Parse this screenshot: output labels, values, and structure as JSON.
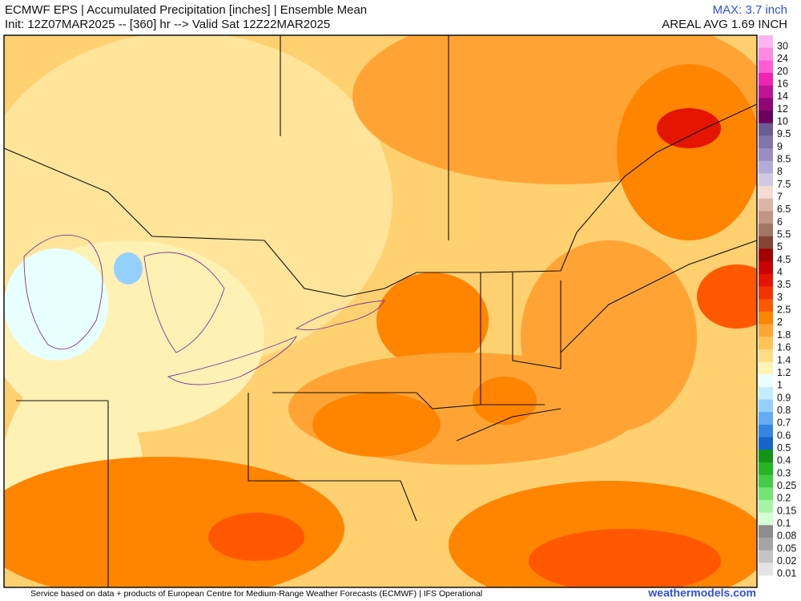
{
  "header": {
    "title": "ECMWF EPS | Accumulated Precipitation [inches] | Ensemble Mean",
    "subtitle": "Init: 12Z07MAR2025 -- [360] hr --> Valid Sat 12Z22MAR2025",
    "max": "MAX: 3.7 inch",
    "areal_avg": "AREAL AVG 1.69 INCH"
  },
  "legend": {
    "items": [
      {
        "value": 30,
        "color": "#ffb4f0"
      },
      {
        "value": 24,
        "color": "#ff88e4"
      },
      {
        "value": 20,
        "color": "#ff5cd4"
      },
      {
        "value": 16,
        "color": "#f024b4"
      },
      {
        "value": 14,
        "color": "#c01494"
      },
      {
        "value": 12,
        "color": "#900674"
      },
      {
        "value": 10,
        "color": "#6c0060"
      },
      {
        "value": 9.5,
        "color": "#6c5c94"
      },
      {
        "value": 9,
        "color": "#8474ac"
      },
      {
        "value": 8.5,
        "color": "#9c8cc4"
      },
      {
        "value": 8,
        "color": "#b4acd4"
      },
      {
        "value": 7.5,
        "color": "#d0c8e4"
      },
      {
        "value": 7,
        "color": "#f4dcd4"
      },
      {
        "value": 6.5,
        "color": "#dcb4a4"
      },
      {
        "value": 6,
        "color": "#c49484"
      },
      {
        "value": 5.5,
        "color": "#a47464"
      },
      {
        "value": 5,
        "color": "#844434"
      },
      {
        "value": 4.5,
        "color": "#a40000"
      },
      {
        "value": 4,
        "color": "#c80000"
      },
      {
        "value": 3.5,
        "color": "#e41400"
      },
      {
        "value": 3,
        "color": "#f43400"
      },
      {
        "value": 2.5,
        "color": "#ff5800"
      },
      {
        "value": 2,
        "color": "#ff8400"
      },
      {
        "value": 1.8,
        "color": "#ffa434"
      },
      {
        "value": 1.6,
        "color": "#ffc454"
      },
      {
        "value": 1.4,
        "color": "#ffdc84"
      },
      {
        "value": 1.2,
        "color": "#fff4b4"
      },
      {
        "value": 1,
        "color": "#ecffff"
      },
      {
        "value": 0.9,
        "color": "#c4ecff"
      },
      {
        "value": 0.8,
        "color": "#94d0ff"
      },
      {
        "value": 0.7,
        "color": "#64acf4"
      },
      {
        "value": 0.6,
        "color": "#3484e4"
      },
      {
        "value": 0.5,
        "color": "#1464cc"
      },
      {
        "value": 0.4,
        "color": "#149414"
      },
      {
        "value": 0.3,
        "color": "#24b424"
      },
      {
        "value": 0.25,
        "color": "#44cc44"
      },
      {
        "value": 0.2,
        "color": "#74e474"
      },
      {
        "value": 0.15,
        "color": "#a4f4a4"
      },
      {
        "value": 0.1,
        "color": "#d4ffd4"
      },
      {
        "value": 0.08,
        "color": "#8c8c8c"
      },
      {
        "value": 0.05,
        "color": "#a4a4a4"
      },
      {
        "value": 0.02,
        "color": "#c4c4c4"
      },
      {
        "value": 0.01,
        "color": "#e4e4e4"
      }
    ]
  },
  "footer": {
    "credit": "Service based on data + products of European Centre for Medium-Range Weather Forecasts (ECMWF) | IFS Operational",
    "site": "weathermodels.com"
  }
}
